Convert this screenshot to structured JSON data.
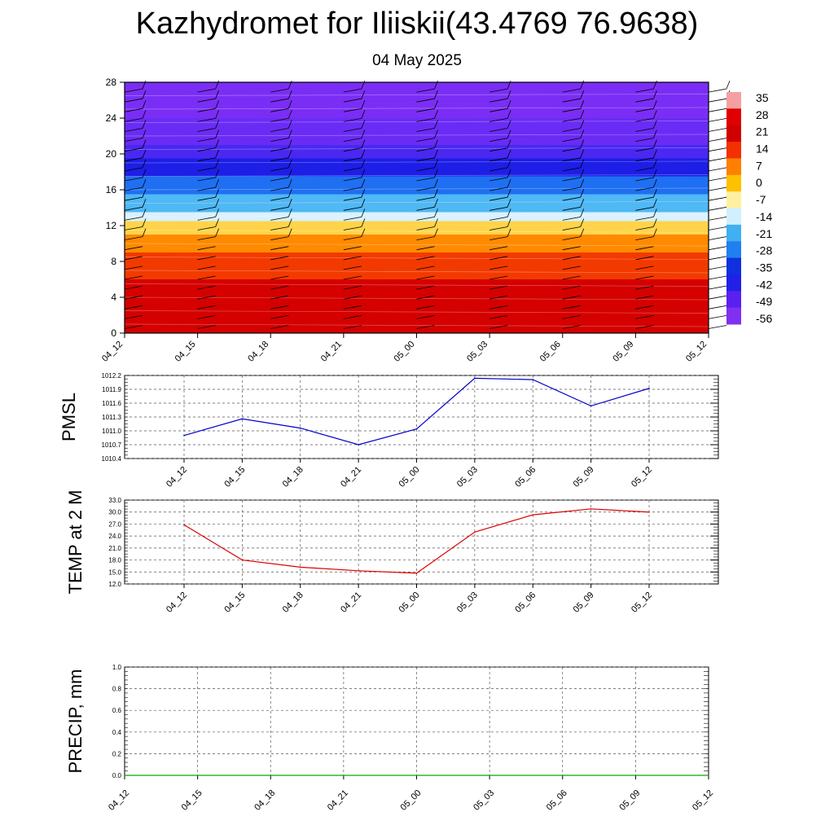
{
  "title": "Kazhydromet for Iliiskii(43.4769 76.9638)",
  "subtitle": "04 May 2025",
  "chart_data": [
    {
      "type": "heatmap",
      "description_role": "vertical cross-section",
      "x_categories": [
        "04_12",
        "04_15",
        "04_18",
        "04_21",
        "05_00",
        "05_03",
        "05_06",
        "05_09",
        "05_12"
      ],
      "y_ticks": [
        0,
        4,
        8,
        12,
        16,
        20,
        24,
        28
      ],
      "ylim": [
        0,
        28
      ],
      "colorbar": {
        "labels": [
          "35",
          "28",
          "21",
          "14",
          "7",
          "0",
          "-7",
          "-14",
          "-21",
          "-28",
          "-35",
          "-42",
          "-49",
          "-56"
        ]
      },
      "bands": [
        {
          "y0": 0,
          "y1": 6,
          "color": "#d50000"
        },
        {
          "y0": 6,
          "y1": 9,
          "color": "#f23a00"
        },
        {
          "y0": 9,
          "y1": 11,
          "color": "#ff8a00"
        },
        {
          "y0": 11,
          "y1": 12.5,
          "color": "#ffd44a"
        },
        {
          "y0": 12.5,
          "y1": 13.5,
          "color": "#d9f2ff"
        },
        {
          "y0": 13.5,
          "y1": 15.5,
          "color": "#4fb8f5"
        },
        {
          "y0": 15.5,
          "y1": 17.5,
          "color": "#1f6ff2"
        },
        {
          "y0": 17.5,
          "y1": 19.5,
          "color": "#1d1ee6"
        },
        {
          "y0": 19.5,
          "y1": 21,
          "color": "#4a28f2"
        },
        {
          "y0": 21,
          "y1": 24,
          "color": "#6a2cf5"
        },
        {
          "y0": 24,
          "y1": 28,
          "color": "#7a2ef5"
        }
      ]
    },
    {
      "type": "line",
      "ylabel": "PMSL",
      "categories": [
        "04_12",
        "04_15",
        "04_18",
        "04_21",
        "05_00",
        "05_03",
        "05_06",
        "05_09",
        "05_12"
      ],
      "y_ticks": [
        "1010.4",
        "1010.7",
        "1011.0",
        "1011.3",
        "1011.6",
        "1011.9",
        "1012.2"
      ],
      "ylim": [
        1010.4,
        1012.2
      ],
      "color": "#0000cc",
      "values": [
        1010.9,
        1011.26,
        1011.06,
        1010.7,
        1011.04,
        1012.14,
        1012.11,
        1011.54,
        1011.92
      ]
    },
    {
      "type": "line",
      "ylabel": "TEMP at 2 M",
      "categories": [
        "04_12",
        "04_15",
        "04_18",
        "04_21",
        "05_00",
        "05_03",
        "05_06",
        "05_09",
        "05_12"
      ],
      "y_ticks": [
        "12.0",
        "15.0",
        "18.0",
        "21.0",
        "24.0",
        "27.0",
        "30.0",
        "33.0"
      ],
      "ylim": [
        12,
        33
      ],
      "color": "#dd0000",
      "values": [
        26.8,
        18.0,
        16.2,
        15.3,
        14.7,
        25.0,
        29.3,
        30.8,
        30.0
      ]
    },
    {
      "type": "line",
      "ylabel": "PRECIP, mm",
      "categories": [
        "04_12",
        "04_15",
        "04_18",
        "04_21",
        "05_00",
        "05_03",
        "05_06",
        "05_09",
        "05_12"
      ],
      "y_ticks": [
        "0.0",
        "0.2",
        "0.4",
        "0.6",
        "0.8",
        "1.0"
      ],
      "ylim": [
        0,
        1
      ],
      "color": "#00aa00",
      "values": [
        0,
        0,
        0,
        0,
        0,
        0,
        0,
        0,
        0
      ]
    }
  ]
}
